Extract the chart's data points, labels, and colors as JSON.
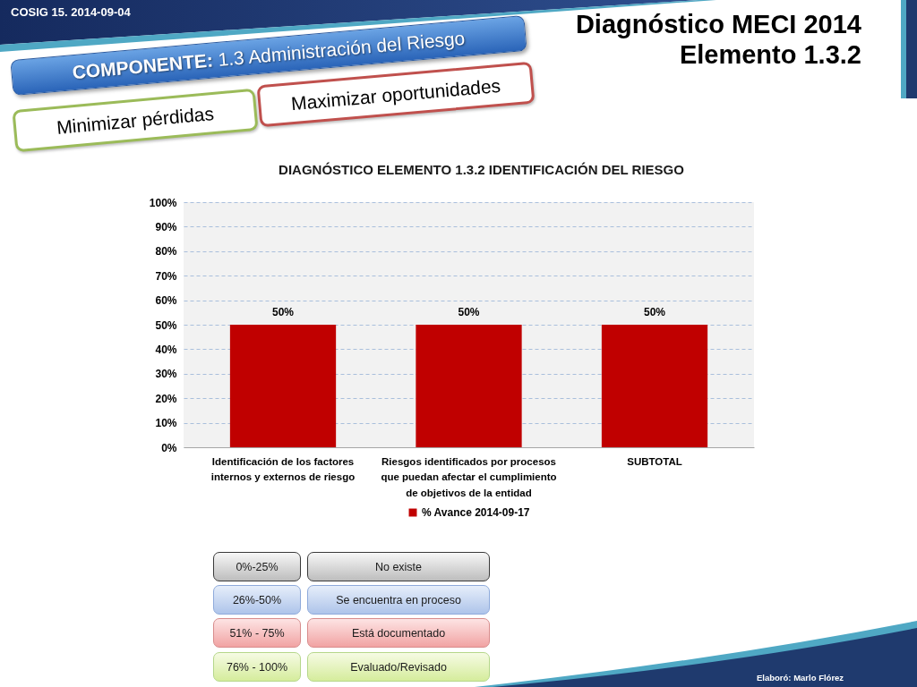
{
  "chart_data": {
    "type": "bar",
    "title": "DIAGNÓSTICO ELEMENTO 1.3.2 IDENTIFICACIÓN DEL RIESGO",
    "categories": [
      "Identificación de los factores internos y externos de riesgo",
      "Riesgos identificados por procesos que puedan afectar el cumplimiento de objetivos de la entidad",
      "SUBTOTAL"
    ],
    "series": [
      {
        "name": "% Avance 2014-09-17",
        "color": "#c00000",
        "values": [
          50,
          50,
          50
        ],
        "value_labels": [
          "50%",
          "50%",
          "50%"
        ]
      }
    ],
    "ylim": [
      0,
      100
    ],
    "yticks": [
      {
        "value": 0,
        "label": "0%"
      },
      {
        "value": 10,
        "label": "10%"
      },
      {
        "value": 20,
        "label": "20%"
      },
      {
        "value": 30,
        "label": "30%"
      },
      {
        "value": 40,
        "label": "40%"
      },
      {
        "value": 50,
        "label": "50%"
      },
      {
        "value": 60,
        "label": "60%"
      },
      {
        "value": 70,
        "label": "70%"
      },
      {
        "value": 80,
        "label": "80%"
      },
      {
        "value": 90,
        "label": "90%"
      },
      {
        "value": 100,
        "label": "100%"
      }
    ],
    "grid": "y",
    "legend": "bottom",
    "annotations": [
      "COSIG 15. 2014-09-04",
      "Diagnóstico MECI 2014",
      "Elemento 1.3.2",
      "COMPONENTE: 1.3 Administración del Riesgo",
      "Maximizar oportunidades",
      "Minimizar pérdidas",
      "0%-25%",
      "No existe",
      "26%-50%",
      "Se encuentra en proceso",
      "51% - 75%",
      "Está documentado",
      "76% - 100%",
      "Evaluado/Revisado",
      "Elaboró: Marlo Flórez"
    ]
  }
}
